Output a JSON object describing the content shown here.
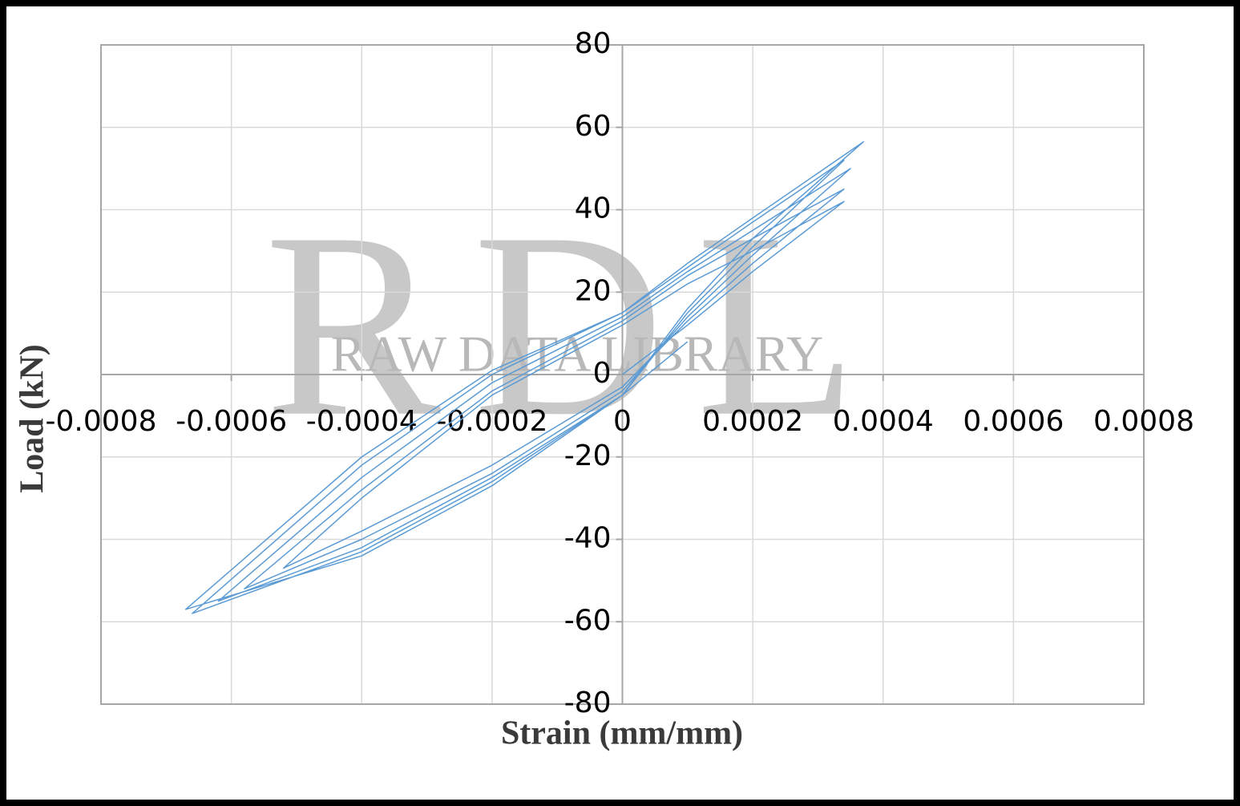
{
  "chart_data": {
    "type": "line",
    "x_label": "Strain (mm/mm)",
    "y_label": "Load (kN)",
    "watermark_logo": "RDL",
    "watermark": "RAW DATA LIBRARY",
    "xlim": [
      -0.0008,
      0.0008
    ],
    "xticks": [
      -0.0008,
      -0.0006,
      -0.0004,
      -0.0002,
      0,
      0.0002,
      0.0004,
      0.0006,
      0.0008
    ],
    "ylim": [
      -80,
      80
    ],
    "yticks": [
      -80,
      -60,
      -40,
      -20,
      0,
      20,
      40,
      60,
      80
    ],
    "grid": true,
    "x": [
      0,
      0.0001,
      0.0002,
      0.00034,
      0.0002,
      0.0001,
      0,
      -0.0002,
      -0.0004,
      -0.00052,
      -0.0004,
      -0.0002,
      0,
      0.0001,
      0.0002,
      0.00034,
      0.0002,
      0.0001,
      0,
      -0.0002,
      -0.0004,
      -0.00058,
      -0.0004,
      -0.0002,
      0,
      0.0001,
      0.0002,
      0.00035,
      0.0002,
      0.0001,
      0,
      -0.0002,
      -0.0004,
      -0.00062,
      -0.0004,
      -0.0002,
      0,
      0.0001,
      0.0002,
      0.00034,
      0.0002,
      0.0001,
      0,
      -0.0002,
      -0.0004,
      -0.00066,
      -0.0004,
      -0.0002,
      0,
      0.0001,
      0.0002,
      0.00037,
      0.0002,
      0.0001,
      0,
      -0.0002,
      -0.0004,
      -0.00067,
      -0.0004,
      -0.0002,
      0,
      0.0001
    ],
    "series": [
      {
        "color": "#5b9bd5",
        "values": [
          0,
          12,
          25,
          42,
          30,
          22,
          12,
          -5,
          -30,
          -47,
          -38,
          -22,
          -3,
          13,
          27,
          45,
          33,
          24,
          13,
          -4,
          -28,
          -52,
          -40,
          -24,
          -4,
          14,
          29,
          50,
          35,
          25,
          14,
          -2,
          -25,
          -55,
          -42,
          -25,
          -5,
          15,
          31,
          52,
          37,
          26,
          15,
          0,
          -22,
          -58,
          -43,
          -26,
          -5,
          16,
          33,
          56.5,
          38,
          27,
          15,
          1,
          -20,
          -57,
          -44,
          -27,
          -5,
          8
        ]
      }
    ]
  }
}
